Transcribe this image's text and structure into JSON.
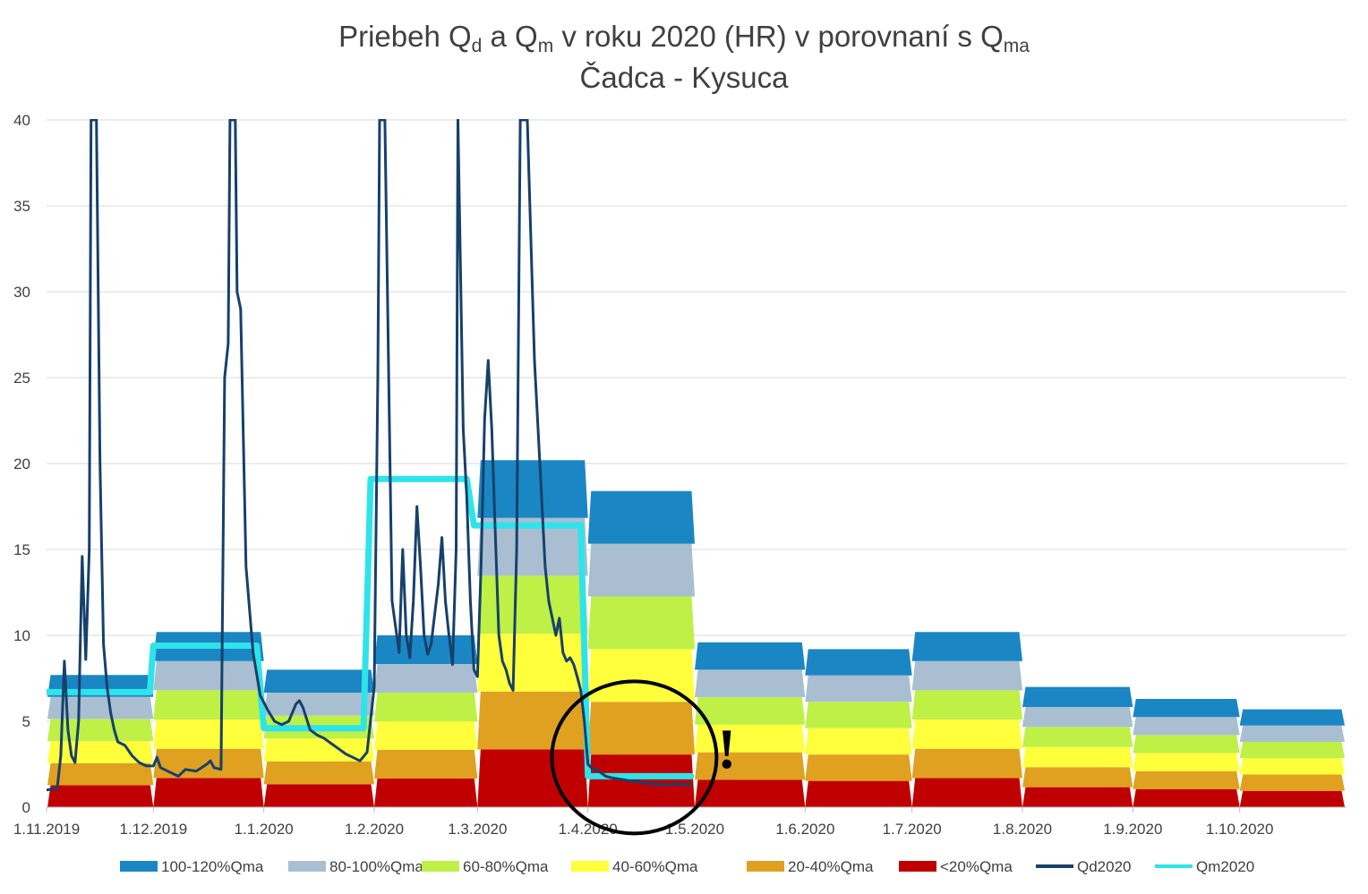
{
  "chart_data": {
    "type": "area",
    "title": {
      "line1_parts": [
        {
          "t": "Priebeh Q",
          "sub": false
        },
        {
          "t": "d",
          "sub": true
        },
        {
          "t": " a Q",
          "sub": false
        },
        {
          "t": "m",
          "sub": true
        },
        {
          "t": " v roku 2020 (HR) v porovnaní s Q",
          "sub": false
        },
        {
          "t": "ma",
          "sub": true
        }
      ],
      "line2": "Čadca - Kysuca"
    },
    "x_domain_days": [
      0,
      365
    ],
    "y_range": [
      0,
      40
    ],
    "y_ticks": [
      0,
      5,
      10,
      15,
      20,
      25,
      30,
      35,
      40
    ],
    "x_ticks": [
      {
        "day": 0,
        "label": "1.11.2019"
      },
      {
        "day": 30,
        "label": "1.12.2019"
      },
      {
        "day": 61,
        "label": "1.1.2020"
      },
      {
        "day": 92,
        "label": "1.2.2020"
      },
      {
        "day": 121,
        "label": "1.3.2020"
      },
      {
        "day": 152,
        "label": "1.4.2020"
      },
      {
        "day": 182,
        "label": "1.5.2020"
      },
      {
        "day": 213,
        "label": "1.6.2020"
      },
      {
        "day": 243,
        "label": "1.7.2020"
      },
      {
        "day": 274,
        "label": "1.8.2020"
      },
      {
        "day": 305,
        "label": "1.9.2020"
      },
      {
        "day": 335,
        "label": "1.10.2020"
      }
    ],
    "month_start_days": [
      0,
      30,
      61,
      92,
      121,
      152,
      182,
      213,
      243,
      274,
      305,
      335,
      366
    ],
    "qma_monthly_120pct": [
      7.7,
      10.2,
      8.0,
      10.0,
      20.2,
      18.4,
      9.6,
      9.2,
      10.2,
      7.0,
      6.3,
      5.7
    ],
    "bands": [
      {
        "name": "<20%Qma",
        "lo": 0.0,
        "hi": 0.2,
        "color": "#c00000"
      },
      {
        "name": "20-40%Qma",
        "lo": 0.2,
        "hi": 0.4,
        "color": "#e0a020"
      },
      {
        "name": "40-60%Qma",
        "lo": 0.4,
        "hi": 0.6,
        "color": "#ffff3c"
      },
      {
        "name": "60-80%Qma",
        "lo": 0.6,
        "hi": 0.8,
        "color": "#bef046"
      },
      {
        "name": "80-100%Qma",
        "lo": 0.8,
        "hi": 1.0,
        "color": "#a9bfd1"
      },
      {
        "name": "100-120%Qma",
        "lo": 1.0,
        "hi": 1.2,
        "color": "#1b86c4"
      }
    ],
    "series": [
      {
        "name": "Qd2020",
        "color": "#17406b",
        "points": [
          [
            0,
            1.0
          ],
          [
            3,
            1.1
          ],
          [
            4,
            3.0
          ],
          [
            5,
            8.5
          ],
          [
            6,
            4.5
          ],
          [
            7,
            3.0
          ],
          [
            8,
            2.6
          ],
          [
            9,
            5.0
          ],
          [
            10,
            14.6
          ],
          [
            11,
            8.6
          ],
          [
            12,
            15.0
          ],
          [
            12.5,
            40
          ],
          [
            14,
            40
          ],
          [
            15,
            20.0
          ],
          [
            16,
            9.5
          ],
          [
            17,
            7.0
          ],
          [
            18,
            5.5
          ],
          [
            19,
            4.5
          ],
          [
            20,
            3.8
          ],
          [
            22,
            3.6
          ],
          [
            24,
            3.0
          ],
          [
            26,
            2.6
          ],
          [
            28,
            2.4
          ],
          [
            30,
            2.4
          ],
          [
            31,
            2.9
          ],
          [
            32,
            2.3
          ],
          [
            34,
            2.1
          ],
          [
            36,
            1.9
          ],
          [
            37,
            1.8
          ],
          [
            39,
            2.2
          ],
          [
            42,
            2.1
          ],
          [
            45,
            2.5
          ],
          [
            46,
            2.7
          ],
          [
            47,
            2.3
          ],
          [
            49,
            2.2
          ],
          [
            50,
            25.0
          ],
          [
            51,
            27.0
          ],
          [
            51.5,
            40
          ],
          [
            53,
            40
          ],
          [
            53.5,
            30.0
          ],
          [
            54.5,
            29.0
          ],
          [
            56,
            14.0
          ],
          [
            58,
            9.0
          ],
          [
            60,
            6.5
          ],
          [
            62,
            5.7
          ],
          [
            64,
            5.0
          ],
          [
            66,
            4.8
          ],
          [
            68,
            5.0
          ],
          [
            70,
            6.0
          ],
          [
            71,
            6.2
          ],
          [
            72,
            5.8
          ],
          [
            74,
            4.5
          ],
          [
            76,
            4.2
          ],
          [
            78,
            4.0
          ],
          [
            80,
            3.7
          ],
          [
            82,
            3.4
          ],
          [
            84,
            3.1
          ],
          [
            86,
            2.9
          ],
          [
            88,
            2.7
          ],
          [
            90,
            3.2
          ],
          [
            92,
            7.0
          ],
          [
            93,
            25.0
          ],
          [
            93.5,
            40
          ],
          [
            95,
            40
          ],
          [
            97,
            12.0
          ],
          [
            99,
            9.0
          ],
          [
            100,
            15.0
          ],
          [
            101,
            10.0
          ],
          [
            102,
            8.7
          ],
          [
            103,
            12.0
          ],
          [
            104,
            17.5
          ],
          [
            105,
            14.0
          ],
          [
            106,
            10.0
          ],
          [
            107,
            8.9
          ],
          [
            108,
            9.5
          ],
          [
            110,
            13.0
          ],
          [
            111,
            15.7
          ],
          [
            112,
            12.0
          ],
          [
            113,
            10.0
          ],
          [
            114,
            8.3
          ],
          [
            115,
            15.0
          ],
          [
            115.5,
            40
          ],
          [
            117,
            22.0
          ],
          [
            118,
            18.0
          ],
          [
            119,
            12.0
          ],
          [
            120,
            8.0
          ],
          [
            121,
            7.6
          ],
          [
            122,
            14.0
          ],
          [
            123,
            22.6
          ],
          [
            124,
            26.0
          ],
          [
            125,
            22.0
          ],
          [
            126,
            16.0
          ],
          [
            127,
            10.0
          ],
          [
            128,
            8.5
          ],
          [
            129,
            8.0
          ],
          [
            130,
            7.2
          ],
          [
            131,
            6.8
          ],
          [
            132,
            15.0
          ],
          [
            133,
            40
          ],
          [
            135,
            40
          ],
          [
            137,
            26.0
          ],
          [
            139,
            18.0
          ],
          [
            140,
            14.0
          ],
          [
            141,
            12.0
          ],
          [
            142,
            11.0
          ],
          [
            143,
            10.0
          ],
          [
            144,
            11.0
          ],
          [
            145,
            9.0
          ],
          [
            146,
            8.5
          ],
          [
            147,
            8.7
          ],
          [
            148,
            8.3
          ],
          [
            149,
            7.6
          ],
          [
            150,
            6.8
          ],
          [
            151,
            5.0
          ],
          [
            152,
            2.5
          ],
          [
            153,
            2.3
          ],
          [
            155,
            2.1
          ],
          [
            157,
            1.8
          ],
          [
            159,
            1.7
          ],
          [
            162,
            1.6
          ],
          [
            165,
            1.5
          ],
          [
            168,
            1.4
          ],
          [
            171,
            1.35
          ],
          [
            174,
            1.3
          ],
          [
            177,
            1.35
          ],
          [
            180,
            1.3
          ],
          [
            181,
            1.35
          ]
        ]
      },
      {
        "name": "Qm2020",
        "color": "#2fe3ea",
        "points": [
          [
            0,
            6.7
          ],
          [
            29,
            6.7
          ],
          [
            30,
            9.4
          ],
          [
            59,
            9.4
          ],
          [
            61,
            4.6
          ],
          [
            89,
            4.6
          ],
          [
            91,
            19.1
          ],
          [
            118,
            19.1
          ],
          [
            120,
            16.4
          ],
          [
            150,
            16.4
          ],
          [
            152,
            1.8
          ],
          [
            181,
            1.8
          ]
        ]
      }
    ],
    "legend": {
      "position": "bottom",
      "items": [
        {
          "name": "100-120%Qma",
          "kind": "area",
          "color": "#1b86c4"
        },
        {
          "name": "80-100%Qma",
          "kind": "area",
          "color": "#a9bfd1"
        },
        {
          "name": "60-80%Qma",
          "kind": "area",
          "color": "#bef046"
        },
        {
          "name": "40-60%Qma",
          "kind": "area",
          "color": "#ffff3c"
        },
        {
          "name": "20-40%Qma",
          "kind": "area",
          "color": "#e0a020"
        },
        {
          "name": "<20%Qma",
          "kind": "area",
          "color": "#c00000"
        },
        {
          "name": "Qd2020",
          "kind": "line",
          "color": "#17406b"
        },
        {
          "name": "Qm2020",
          "kind": "line",
          "color": "#2fe3ea"
        }
      ]
    },
    "annotation": {
      "text": "!",
      "circle_center_day": 165,
      "circle_center_value": 2.9,
      "text_day": 191,
      "text_value": 2.3
    }
  }
}
